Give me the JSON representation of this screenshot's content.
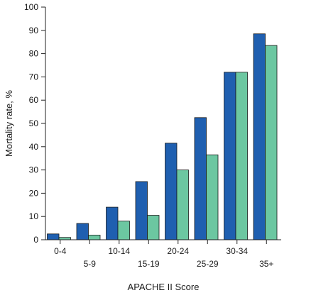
{
  "chart_data": {
    "type": "bar",
    "title": "",
    "xlabel": "APACHE II Score",
    "ylabel": "Mortality rate, %",
    "categories": [
      "0-4",
      "5-9",
      "10-14",
      "15-19",
      "20-24",
      "25-29",
      "30-34",
      "35+"
    ],
    "series": [
      {
        "values": [
          2.5,
          7,
          14,
          25,
          41.5,
          52.5,
          72,
          88.5
        ],
        "color": "#1f5fb0"
      },
      {
        "values": [
          1,
          2,
          8,
          10.5,
          30,
          36.5,
          72,
          83.5
        ],
        "color": "#6cc7a1"
      }
    ],
    "ylim": [
      0,
      100
    ],
    "yticks": [
      0,
      10,
      20,
      30,
      40,
      50,
      60,
      70,
      80,
      90,
      100
    ],
    "grid": false,
    "legend": "none"
  }
}
